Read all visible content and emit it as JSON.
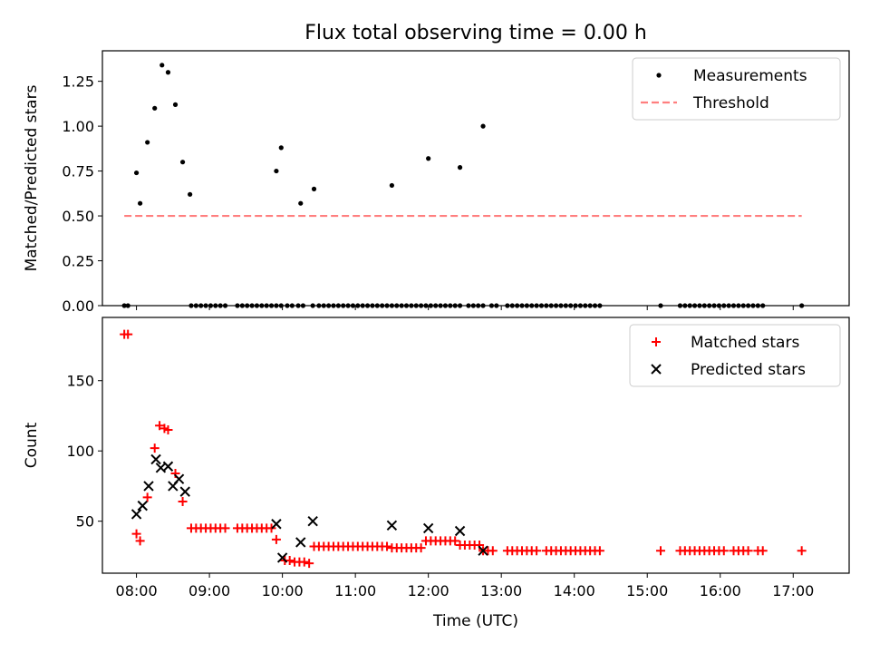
{
  "title": "Flux total observing time = 0.00 h",
  "chart_data": [
    {
      "type": "scatter",
      "ylabel": "Matched/Predicted stars",
      "xlim": [
        "07:32",
        "17:46"
      ],
      "ylim": [
        0.0,
        1.42
      ],
      "x_ticks": [
        "08:00",
        "09:00",
        "10:00",
        "11:00",
        "12:00",
        "13:00",
        "14:00",
        "15:00",
        "16:00",
        "17:00"
      ],
      "y_ticks": [
        "0.00",
        "0.25",
        "0.50",
        "0.75",
        "1.00",
        "1.25"
      ],
      "legend": {
        "placement": "upper right",
        "entries": [
          "Measurements",
          "Threshold"
        ]
      },
      "series": [
        {
          "name": "Measurements",
          "marker": "dot",
          "color": "#000000",
          "points": [
            [
              "07:50",
              0
            ],
            [
              "07:53",
              0
            ],
            [
              "08:00",
              0.74
            ],
            [
              "08:03",
              0.57
            ],
            [
              "08:09",
              0.91
            ],
            [
              "08:15",
              1.1
            ],
            [
              "08:21",
              1.34
            ],
            [
              "08:26",
              1.3
            ],
            [
              "08:32",
              1.12
            ],
            [
              "08:38",
              0.8
            ],
            [
              "08:44",
              0.62
            ],
            [
              "08:45",
              0
            ],
            [
              "08:49",
              0
            ],
            [
              "08:53",
              0
            ],
            [
              "08:57",
              0
            ],
            [
              "09:01",
              0
            ],
            [
              "09:05",
              0
            ],
            [
              "09:09",
              0
            ],
            [
              "09:13",
              0
            ],
            [
              "09:23",
              0
            ],
            [
              "09:27",
              0
            ],
            [
              "09:31",
              0
            ],
            [
              "09:35",
              0
            ],
            [
              "09:39",
              0
            ],
            [
              "09:43",
              0
            ],
            [
              "09:47",
              0
            ],
            [
              "09:51",
              0
            ],
            [
              "09:55",
              0
            ],
            [
              "09:59",
              0
            ],
            [
              "09:55",
              0.75
            ],
            [
              "09:59",
              0.88
            ],
            [
              "10:04",
              0
            ],
            [
              "10:08",
              0
            ],
            [
              "10:13",
              0
            ],
            [
              "10:17",
              0
            ],
            [
              "10:25",
              0
            ],
            [
              "10:15",
              0.57
            ],
            [
              "10:26",
              0.65
            ],
            [
              "10:30",
              0
            ],
            [
              "10:34",
              0
            ],
            [
              "10:38",
              0
            ],
            [
              "10:42",
              0
            ],
            [
              "10:46",
              0
            ],
            [
              "10:50",
              0
            ],
            [
              "10:54",
              0
            ],
            [
              "10:58",
              0
            ],
            [
              "11:02",
              0
            ],
            [
              "11:06",
              0
            ],
            [
              "11:10",
              0
            ],
            [
              "11:14",
              0
            ],
            [
              "11:18",
              0
            ],
            [
              "11:22",
              0
            ],
            [
              "11:26",
              0
            ],
            [
              "11:30",
              0
            ],
            [
              "11:34",
              0
            ],
            [
              "11:38",
              0
            ],
            [
              "11:42",
              0
            ],
            [
              "11:46",
              0
            ],
            [
              "11:50",
              0
            ],
            [
              "11:54",
              0
            ],
            [
              "11:58",
              0
            ],
            [
              "12:02",
              0
            ],
            [
              "12:06",
              0
            ],
            [
              "12:10",
              0
            ],
            [
              "12:14",
              0
            ],
            [
              "12:18",
              0
            ],
            [
              "12:22",
              0
            ],
            [
              "12:26",
              0
            ],
            [
              "11:30",
              0.67
            ],
            [
              "12:00",
              0.82
            ],
            [
              "12:26",
              0.77
            ],
            [
              "12:45",
              1.0
            ],
            [
              "12:33",
              0
            ],
            [
              "12:37",
              0
            ],
            [
              "12:41",
              0
            ],
            [
              "12:45",
              0
            ],
            [
              "12:52",
              0
            ],
            [
              "12:56",
              0
            ],
            [
              "13:05",
              0
            ],
            [
              "13:09",
              0
            ],
            [
              "13:13",
              0
            ],
            [
              "13:17",
              0
            ],
            [
              "13:21",
              0
            ],
            [
              "13:25",
              0
            ],
            [
              "13:29",
              0
            ],
            [
              "13:33",
              0
            ],
            [
              "13:37",
              0
            ],
            [
              "13:41",
              0
            ],
            [
              "13:45",
              0
            ],
            [
              "13:49",
              0
            ],
            [
              "13:53",
              0
            ],
            [
              "13:57",
              0
            ],
            [
              "14:01",
              0
            ],
            [
              "14:05",
              0
            ],
            [
              "14:09",
              0
            ],
            [
              "14:13",
              0
            ],
            [
              "14:17",
              0
            ],
            [
              "14:21",
              0
            ],
            [
              "15:11",
              0
            ],
            [
              "15:27",
              0
            ],
            [
              "15:31",
              0
            ],
            [
              "15:35",
              0
            ],
            [
              "15:39",
              0
            ],
            [
              "15:43",
              0
            ],
            [
              "15:47",
              0
            ],
            [
              "15:51",
              0
            ],
            [
              "15:55",
              0
            ],
            [
              "15:59",
              0
            ],
            [
              "16:03",
              0
            ],
            [
              "16:07",
              0
            ],
            [
              "16:11",
              0
            ],
            [
              "16:15",
              0
            ],
            [
              "16:19",
              0
            ],
            [
              "16:23",
              0
            ],
            [
              "16:27",
              0
            ],
            [
              "16:31",
              0
            ],
            [
              "16:35",
              0
            ],
            [
              "17:07",
              0
            ]
          ]
        },
        {
          "name": "Threshold",
          "style": "dashed",
          "color": "#ff7f7f",
          "x": [
            "07:50",
            "17:07"
          ],
          "y": [
            0.5,
            0.5
          ]
        }
      ]
    },
    {
      "type": "scatter",
      "xlabel": "Time (UTC)",
      "ylabel": "Count",
      "xlim": [
        "07:32",
        "17:46"
      ],
      "ylim": [
        13,
        195
      ],
      "x_ticks": [
        "08:00",
        "09:00",
        "10:00",
        "11:00",
        "12:00",
        "13:00",
        "14:00",
        "15:00",
        "16:00",
        "17:00"
      ],
      "y_ticks": [
        "50",
        "100",
        "150"
      ],
      "legend": {
        "placement": "upper right",
        "entries": [
          "Matched stars",
          "Predicted stars"
        ]
      },
      "series": [
        {
          "name": "Matched stars",
          "marker": "plus",
          "color": "#ff0000",
          "points": [
            [
              "07:50",
              183
            ],
            [
              "07:53",
              183
            ],
            [
              "08:00",
              41
            ],
            [
              "08:03",
              36
            ],
            [
              "08:09",
              67
            ],
            [
              "08:15",
              102
            ],
            [
              "08:19",
              118
            ],
            [
              "08:23",
              116
            ],
            [
              "08:26",
              115
            ],
            [
              "08:32",
              84
            ],
            [
              "08:38",
              64
            ],
            [
              "08:45",
              45
            ],
            [
              "08:49",
              45
            ],
            [
              "08:53",
              45
            ],
            [
              "08:57",
              45
            ],
            [
              "09:01",
              45
            ],
            [
              "09:05",
              45
            ],
            [
              "09:09",
              45
            ],
            [
              "09:13",
              45
            ],
            [
              "09:23",
              45
            ],
            [
              "09:27",
              45
            ],
            [
              "09:31",
              45
            ],
            [
              "09:35",
              45
            ],
            [
              "09:39",
              45
            ],
            [
              "09:43",
              45
            ],
            [
              "09:47",
              45
            ],
            [
              "09:51",
              45
            ],
            [
              "09:55",
              37
            ],
            [
              "10:02",
              22
            ],
            [
              "10:06",
              22
            ],
            [
              "10:10",
              21
            ],
            [
              "10:14",
              21
            ],
            [
              "10:18",
              21
            ],
            [
              "10:22",
              20
            ],
            [
              "10:26",
              32
            ],
            [
              "10:30",
              32
            ],
            [
              "10:34",
              32
            ],
            [
              "10:38",
              32
            ],
            [
              "10:42",
              32
            ],
            [
              "10:46",
              32
            ],
            [
              "10:50",
              32
            ],
            [
              "10:54",
              32
            ],
            [
              "10:58",
              32
            ],
            [
              "11:02",
              32
            ],
            [
              "11:06",
              32
            ],
            [
              "11:10",
              32
            ],
            [
              "11:14",
              32
            ],
            [
              "11:18",
              32
            ],
            [
              "11:22",
              32
            ],
            [
              "11:26",
              32
            ],
            [
              "11:30",
              31
            ],
            [
              "11:34",
              31
            ],
            [
              "11:38",
              31
            ],
            [
              "11:42",
              31
            ],
            [
              "11:46",
              31
            ],
            [
              "11:50",
              31
            ],
            [
              "11:54",
              31
            ],
            [
              "11:58",
              36
            ],
            [
              "12:02",
              36
            ],
            [
              "12:06",
              36
            ],
            [
              "12:10",
              36
            ],
            [
              "12:14",
              36
            ],
            [
              "12:18",
              36
            ],
            [
              "12:22",
              36
            ],
            [
              "12:26",
              33
            ],
            [
              "12:30",
              33
            ],
            [
              "12:34",
              33
            ],
            [
              "12:38",
              33
            ],
            [
              "12:42",
              33
            ],
            [
              "12:45",
              29
            ],
            [
              "12:49",
              29
            ],
            [
              "12:53",
              29
            ],
            [
              "13:05",
              29
            ],
            [
              "13:09",
              29
            ],
            [
              "13:13",
              29
            ],
            [
              "13:17",
              29
            ],
            [
              "13:21",
              29
            ],
            [
              "13:25",
              29
            ],
            [
              "13:29",
              29
            ],
            [
              "13:37",
              29
            ],
            [
              "13:41",
              29
            ],
            [
              "13:45",
              29
            ],
            [
              "13:49",
              29
            ],
            [
              "13:53",
              29
            ],
            [
              "13:57",
              29
            ],
            [
              "14:01",
              29
            ],
            [
              "14:05",
              29
            ],
            [
              "14:09",
              29
            ],
            [
              "14:13",
              29
            ],
            [
              "14:17",
              29
            ],
            [
              "14:21",
              29
            ],
            [
              "15:11",
              29
            ],
            [
              "15:27",
              29
            ],
            [
              "15:31",
              29
            ],
            [
              "15:35",
              29
            ],
            [
              "15:39",
              29
            ],
            [
              "15:43",
              29
            ],
            [
              "15:47",
              29
            ],
            [
              "15:51",
              29
            ],
            [
              "15:55",
              29
            ],
            [
              "15:59",
              29
            ],
            [
              "16:03",
              29
            ],
            [
              "16:11",
              29
            ],
            [
              "16:15",
              29
            ],
            [
              "16:19",
              29
            ],
            [
              "16:23",
              29
            ],
            [
              "16:31",
              29
            ],
            [
              "16:35",
              29
            ],
            [
              "17:07",
              29
            ]
          ]
        },
        {
          "name": "Predicted stars",
          "marker": "x",
          "color": "#000000",
          "points": [
            [
              "08:00",
              55
            ],
            [
              "08:05",
              61
            ],
            [
              "08:10",
              75
            ],
            [
              "08:16",
              94
            ],
            [
              "08:20",
              88
            ],
            [
              "08:26",
              89
            ],
            [
              "08:30",
              75
            ],
            [
              "08:35",
              80
            ],
            [
              "08:40",
              71
            ],
            [
              "09:55",
              48
            ],
            [
              "10:00",
              24
            ],
            [
              "10:15",
              35
            ],
            [
              "10:25",
              50
            ],
            [
              "11:30",
              47
            ],
            [
              "12:00",
              45
            ],
            [
              "12:26",
              43
            ],
            [
              "12:45",
              29
            ]
          ]
        }
      ]
    }
  ]
}
